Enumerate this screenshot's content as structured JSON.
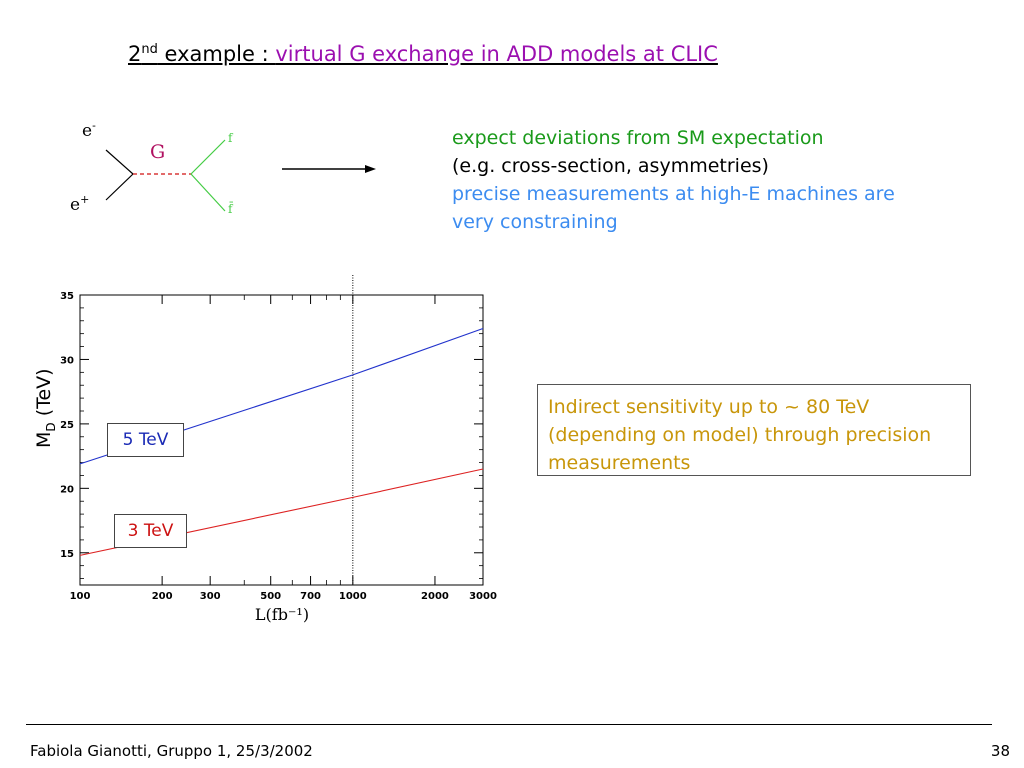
{
  "slide": {
    "title_prefix": "2",
    "title_sup": "nd",
    "title_mid": " example : ",
    "title_highlight": "virtual G exchange in ADD models at  CLIC",
    "desc": {
      "line1": "expect deviations from SM expectation",
      "line2": "(e.g. cross-section, asymmetries)",
      "line3": "precise measurements at high-E machines are",
      "line4": "very constraining"
    },
    "callout": {
      "line1": "Indirect sensitivity up to ~ 80 TeV",
      "line2": "(depending on model) through precision",
      "line3": "measurements"
    },
    "footer_left": "Fabiola Gianotti,  Gruppo 1, 25/3/2002",
    "footer_right": "38"
  },
  "diagram": {
    "e_minus": "e",
    "e_minus_sup": "-",
    "e_plus": "e",
    "e_plus_sup": "+",
    "g_label": "G",
    "f_label": "f",
    "fbar_label": "f̄",
    "colors": {
      "graviton": "#d01010",
      "fermion": "#44cc44",
      "electron": "#000000"
    }
  },
  "chart_data": {
    "type": "line",
    "xlabel": "L(fb⁻¹)",
    "ylabel": "M",
    "ylabel_sub": "D",
    "ylabel_unit": " (TeV)",
    "xscale": "log",
    "xlim": [
      100,
      3000
    ],
    "ylim": [
      12.5,
      35
    ],
    "x_ticks": [
      100,
      200,
      300,
      500,
      700,
      1000,
      2000,
      3000
    ],
    "y_ticks": [
      15,
      20,
      25,
      30,
      35
    ],
    "vline_x": 1000,
    "series": [
      {
        "name": "5 TeV",
        "color": "#2233cc",
        "x": [
          100,
          1000,
          3000
        ],
        "y": [
          21.9,
          28.8,
          32.4
        ]
      },
      {
        "name": "3 TeV",
        "color": "#dd2222",
        "x": [
          100,
          1000,
          3000
        ],
        "y": [
          14.8,
          19.3,
          21.5
        ]
      }
    ]
  }
}
